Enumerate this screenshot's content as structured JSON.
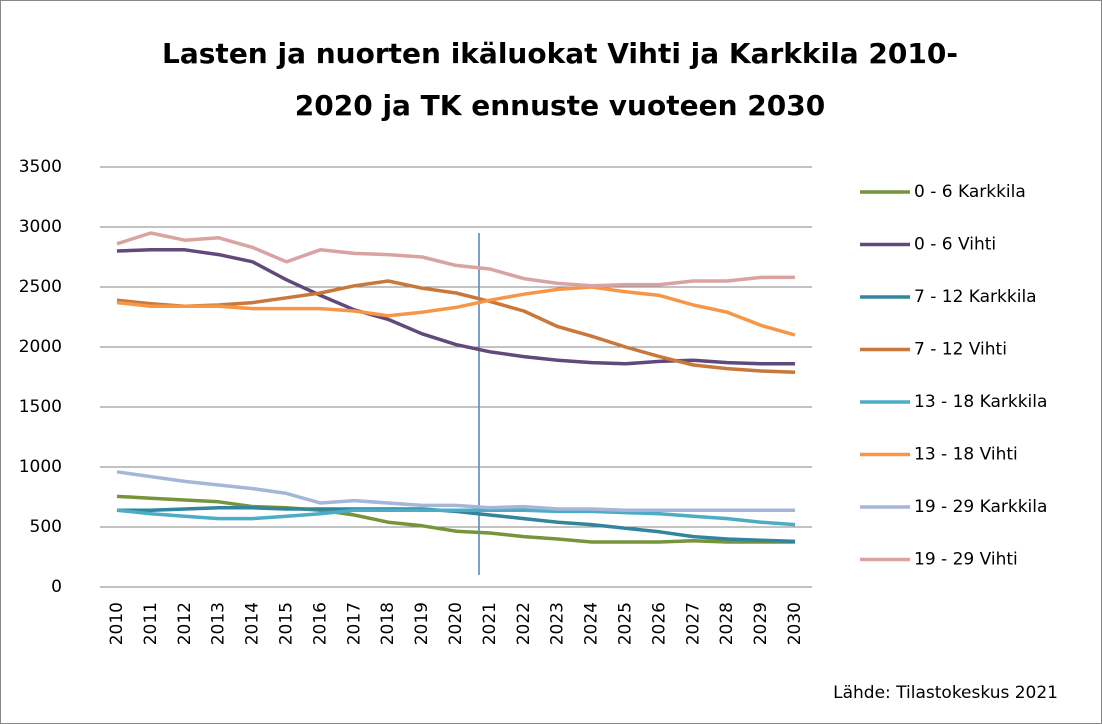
{
  "chart_data": {
    "type": "line",
    "title": "Lasten ja nuorten ikäluokat Vihti ja Karkkila 2010-2020 ja TK ennuste vuoteen 2030",
    "source": "Lähde: Tilastokeskus 2021",
    "categories": [
      "2010",
      "2011",
      "2012",
      "2013",
      "2014",
      "2015",
      "2016",
      "2017",
      "2018",
      "2019",
      "2020",
      "2021",
      "2022",
      "2023",
      "2024",
      "2025",
      "2026",
      "2027",
      "2028",
      "2029",
      "2030"
    ],
    "ylim": [
      0,
      3500
    ],
    "yticks": [
      0,
      500,
      1000,
      1500,
      2000,
      2500,
      3000,
      3500
    ],
    "grid": true,
    "legend": "right",
    "series": [
      {
        "name": "0 - 6 Karkkila",
        "color": "#77933c",
        "values": [
          755,
          740,
          725,
          710,
          670,
          660,
          640,
          600,
          540,
          510,
          465,
          450,
          420,
          400,
          375,
          375,
          375,
          385,
          375,
          375,
          375
        ]
      },
      {
        "name": "0 - 6 Vihti",
        "color": "#604a7b",
        "values": [
          2800,
          2810,
          2810,
          2770,
          2710,
          2560,
          2430,
          2310,
          2230,
          2110,
          2020,
          1960,
          1920,
          1890,
          1870,
          1860,
          1880,
          1890,
          1870,
          1860,
          1860
        ]
      },
      {
        "name": "7 - 12 Karkkila",
        "color": "#31859c",
        "values": [
          640,
          640,
          650,
          660,
          660,
          650,
          650,
          650,
          650,
          650,
          630,
          600,
          570,
          540,
          520,
          490,
          460,
          420,
          400,
          390,
          380
        ]
      },
      {
        "name": "7 - 12 Vihti",
        "color": "#c8783a",
        "values": [
          2390,
          2360,
          2340,
          2350,
          2370,
          2410,
          2450,
          2510,
          2550,
          2490,
          2450,
          2380,
          2300,
          2170,
          2090,
          2000,
          1920,
          1850,
          1820,
          1800,
          1790
        ]
      },
      {
        "name": "13 - 18 Karkkila",
        "color": "#4bacc6",
        "values": [
          640,
          610,
          590,
          570,
          570,
          590,
          610,
          640,
          640,
          640,
          640,
          640,
          640,
          630,
          630,
          620,
          610,
          590,
          570,
          540,
          520
        ]
      },
      {
        "name": "13 - 18 Vihti",
        "color": "#f79646",
        "values": [
          2370,
          2340,
          2340,
          2340,
          2320,
          2320,
          2320,
          2300,
          2260,
          2290,
          2330,
          2390,
          2440,
          2480,
          2500,
          2460,
          2430,
          2350,
          2290,
          2180,
          2100
        ]
      },
      {
        "name": "19 - 29 Karkkila",
        "color": "#a5b6d9",
        "values": [
          960,
          920,
          880,
          850,
          820,
          780,
          700,
          720,
          700,
          680,
          680,
          660,
          670,
          650,
          650,
          640,
          640,
          640,
          640,
          640,
          640
        ]
      },
      {
        "name": "19 - 29 Vihti",
        "color": "#d9a3a2",
        "values": [
          2860,
          2950,
          2890,
          2910,
          2830,
          2710,
          2810,
          2780,
          2770,
          2750,
          2680,
          2650,
          2570,
          2530,
          2510,
          2520,
          2520,
          2550,
          2550,
          2580,
          2580
        ]
      }
    ]
  }
}
